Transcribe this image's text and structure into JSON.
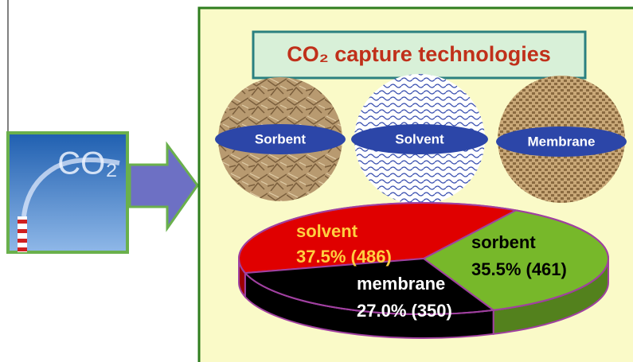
{
  "chart_data": {
    "type": "pie",
    "title": "CO₂ capture technologies",
    "categories": [
      "solvent",
      "sorbent",
      "membrane"
    ],
    "values": [
      37.5,
      35.5,
      27.0
    ],
    "value_labels": [
      "37.5% (486)",
      "35.5% (461)",
      "27.0% (350)"
    ],
    "colors": [
      "#e00000",
      "#77b82a",
      "#000000"
    ]
  },
  "materials": [
    "Sorbent",
    "Solvent",
    "Membrane"
  ],
  "source_image": {
    "label": "CO₂"
  }
}
